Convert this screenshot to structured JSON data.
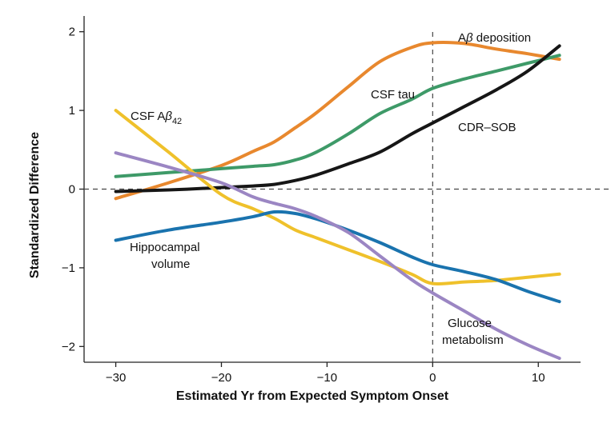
{
  "chart_data": {
    "type": "line",
    "title": "",
    "xlabel": "Estimated Yr from Expected Symptom Onset",
    "ylabel": "Standardized Difference",
    "xlim": [
      -33,
      14
    ],
    "ylim": [
      -2.2,
      2.2
    ],
    "xticks": [
      -30,
      -20,
      -10,
      0,
      10
    ],
    "xtick_labels": [
      "−30",
      "−20",
      "−10",
      "0",
      "10"
    ],
    "yticks": [
      2,
      1,
      0,
      -1,
      -2
    ],
    "ytick_labels": [
      "2",
      "1",
      "0",
      "−1",
      "−2"
    ],
    "grid": false,
    "reference_lines": [
      {
        "orientation": "horizontal",
        "value": 0,
        "style": "dashed"
      },
      {
        "orientation": "vertical",
        "value": 0,
        "style": "dashed"
      }
    ],
    "x": [
      -30,
      -25,
      -20,
      -17,
      -15,
      -13,
      -11,
      -8,
      -5,
      -2,
      0,
      3,
      6,
      9,
      12
    ],
    "series": [
      {
        "name": "Aβ deposition",
        "color": "#E8882E",
        "values": [
          -0.12,
          0.08,
          0.3,
          0.48,
          0.6,
          0.78,
          0.97,
          1.3,
          1.62,
          1.8,
          1.86,
          1.85,
          1.78,
          1.72,
          1.65
        ]
      },
      {
        "name": "CSF tau",
        "color": "#3E9A68",
        "values": [
          0.16,
          0.21,
          0.26,
          0.29,
          0.31,
          0.37,
          0.47,
          0.7,
          0.96,
          1.14,
          1.28,
          1.4,
          1.5,
          1.6,
          1.7
        ]
      },
      {
        "name": "CDR–SOB",
        "color": "#161616",
        "values": [
          -0.03,
          -0.01,
          0.02,
          0.04,
          0.06,
          0.11,
          0.18,
          0.32,
          0.47,
          0.7,
          0.84,
          1.05,
          1.26,
          1.5,
          1.82
        ]
      },
      {
        "name": "CSF Aβ",
        "name_sub": "42",
        "color": "#EFC12B",
        "values": [
          1.0,
          0.47,
          -0.07,
          -0.25,
          -0.37,
          -0.52,
          -0.62,
          -0.77,
          -0.92,
          -1.08,
          -1.2,
          -1.18,
          -1.16,
          -1.12,
          -1.08
        ]
      },
      {
        "name": "Hippocampal volume",
        "name_lines": [
          "Hippocampal",
          "volume"
        ],
        "color": "#1A73AE",
        "values": [
          -0.65,
          -0.52,
          -0.42,
          -0.35,
          -0.29,
          -0.31,
          -0.38,
          -0.52,
          -0.68,
          -0.86,
          -0.96,
          -1.05,
          -1.15,
          -1.3,
          -1.43
        ]
      },
      {
        "name": "Glucose metabolism",
        "name_lines": [
          "Glucose",
          "metabolism"
        ],
        "color": "#9B86C3",
        "values": [
          0.46,
          0.28,
          0.08,
          -0.1,
          -0.18,
          -0.25,
          -0.35,
          -0.55,
          -0.85,
          -1.15,
          -1.32,
          -1.55,
          -1.78,
          -1.98,
          -2.15
        ]
      }
    ]
  }
}
